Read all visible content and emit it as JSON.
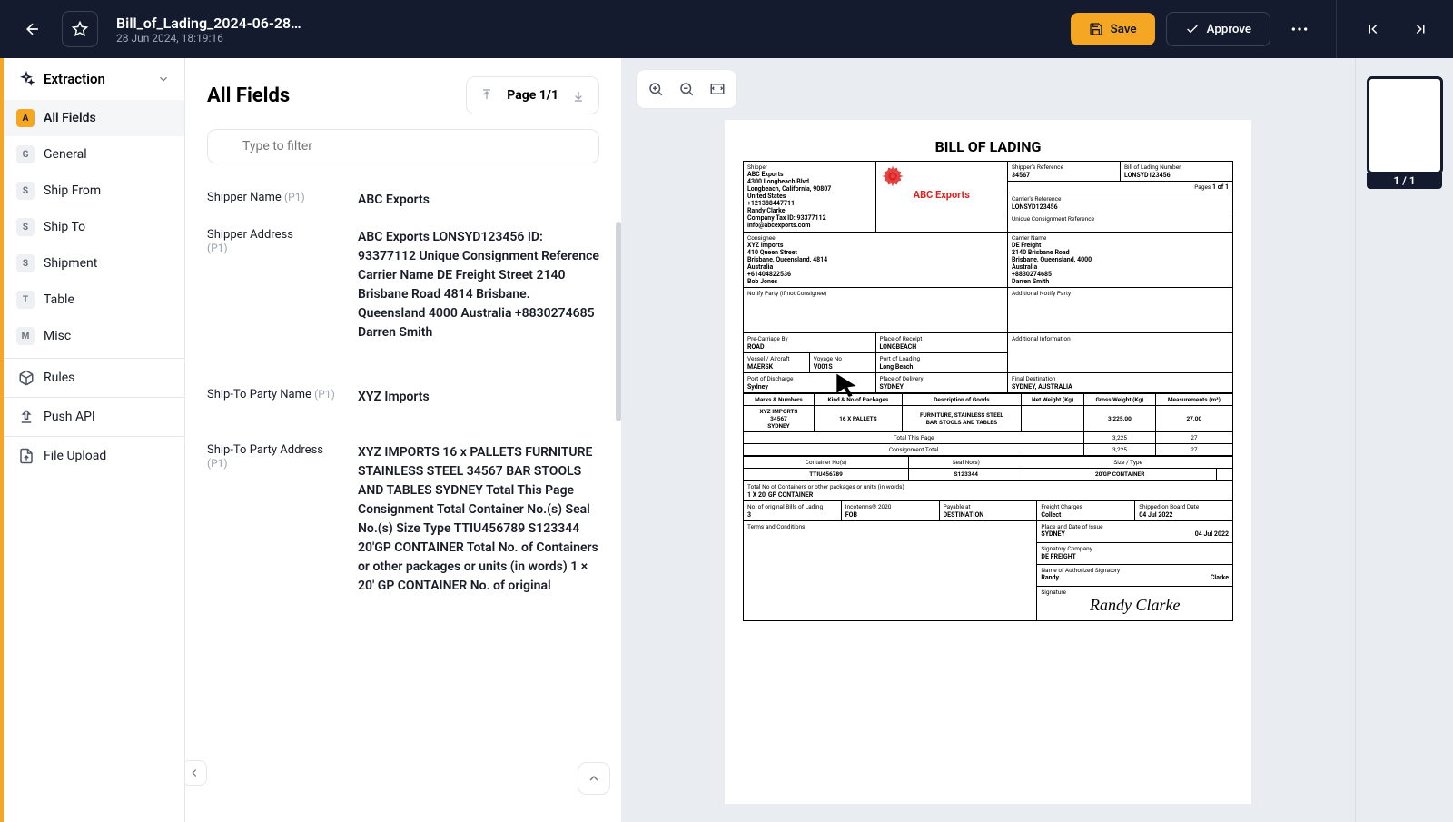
{
  "header": {
    "doc_title": "Bill_of_Lading_2024-06-28…",
    "doc_date": "28 Jun 2024, 18:19:16",
    "save": "Save",
    "approve": "Approve"
  },
  "sidebar": {
    "extraction": "Extraction",
    "items": [
      {
        "badge": "A",
        "label": "All Fields",
        "active": true
      },
      {
        "badge": "G",
        "label": "General"
      },
      {
        "badge": "S",
        "label": "Ship From"
      },
      {
        "badge": "S",
        "label": "Ship To"
      },
      {
        "badge": "S",
        "label": "Shipment"
      },
      {
        "badge": "T",
        "label": "Table"
      },
      {
        "badge": "M",
        "label": "Misc"
      }
    ],
    "rules": "Rules",
    "push_api": "Push API",
    "file_upload": "File Upload"
  },
  "fields_panel": {
    "title": "All Fields",
    "page_nav": "Page 1/1",
    "filter_placeholder": "Type to filter",
    "fields": [
      {
        "label": "Shipper Name",
        "page": "(P1)",
        "value": "ABC Exports"
      },
      {
        "label": "Shipper Address",
        "page": "(P1)",
        "value": "ABC Exports LONSYD123456 ID: 93377112 Unique Consignment Reference Carrier Name DE Freight Street 2140 Brisbane Road 4814 Brisbane. Queensland 4000 Australia +8830274685 Darren Smith"
      },
      {
        "label": "Ship-To Party Name",
        "page": "(P1)",
        "value": "XYZ Imports"
      },
      {
        "label": "Ship-To Party Address",
        "page": "(P1)",
        "value": "XYZ IMPORTS 16 x PALLETS FURNITURE STAINLESS STEEL 34567 BAR STOOLS AND TABLES SYDNEY Total This Page Consignment Total Container No.(s) Seal No.(s) Size Type TTIU456789 S123344 20'GP CONTAINER Total No. of Containers or other packages or units (in words) 1 × 20' GP CONTAINER No. of original"
      }
    ]
  },
  "thumb": {
    "label": "1 / 1"
  },
  "document": {
    "title": "BILL OF LADING",
    "shipper": {
      "title": "Shipper",
      "lines": [
        "ABC Exports",
        "4300 Longbeach Blvd",
        "Longbeach, California, 90807",
        "United States",
        "+121388447711",
        "Randy Clarke",
        "Company Tax ID: 93377112",
        "info@abcexports.com"
      ]
    },
    "pages_label": "Pages",
    "pages_val": "1 of 1",
    "shipper_ref_label": "Shipper's Reference",
    "shipper_ref_val": "34567",
    "bol_number_label": "Bill of Lading Number",
    "bol_number_val": "LONSYD123456",
    "carrier_ref_label": "Carrier's Reference",
    "carrier_ref_val": "LONSYD123456",
    "ucr_label": "Unique Consignment Reference",
    "consignee": {
      "title": "Consignee",
      "lines": [
        "XYZ Imports",
        "410 Queen Street",
        "Brisbane, Queensland, 4814",
        "Australia",
        "+61404822536",
        "Bob Jones"
      ]
    },
    "carrier_name": {
      "title": "Carrier Name",
      "lines": [
        "DE Freight",
        "2140 Brisbane Road",
        "Brisbane, Queensland, 4000",
        "Australia",
        "+8830274685",
        "Darren Smith"
      ]
    },
    "notify_label": "Notify Party (if not Consignee)",
    "add_notify_label": "Additional Notify Party",
    "precarriage_label": "Pre-Carriage By",
    "precarriage_val": "ROAD",
    "receipt_label": "Place of Receipt",
    "receipt_val": "LONGBEACH",
    "add_info_label": "Additional Information",
    "vessel_label": "Vessel / Aircraft",
    "vessel_val": "MAERSK",
    "voyage_label": "Voyage No",
    "voyage_val": "V001S",
    "loading_label": "Port of Loading",
    "loading_val": "Long Beach",
    "discharge_label": "Port of Discharge",
    "discharge_val": "Sydney",
    "delivery_label": "Place of Delivery",
    "delivery_val": "SYDNEY",
    "final_dest_label": "Final Destination",
    "final_dest_val": "SYDNEY, AUSTRALIA",
    "items": {
      "headers": [
        "Marks & Numbers",
        "Kind & No of Packages",
        "Description of Goods",
        "Net Weight (Kg)",
        "Gross Weight (Kg)",
        "Measurements (m³)"
      ],
      "row": [
        "XYZ IMPORTS\n34567\nSYDNEY",
        "16 X PALLETS",
        "FURNITURE, STAINLESS STEEL\nBAR STOOLS AND TABLES",
        "",
        "3,225.00",
        "27.00"
      ],
      "total_page_label": "Total This Page",
      "total_page_gw": "3,225",
      "total_page_m": "27",
      "consign_total_label": "Consignment Total",
      "consign_gw": "3,225",
      "consign_m": "27"
    },
    "container_headers": [
      "Container No(s)",
      "Seal No(s)",
      "Size / Type"
    ],
    "container_row": [
      "TTIU456789",
      "S123344",
      "20'GP CONTAINER",
      ""
    ],
    "total_words_label": "Total No of Containers or other packages or units (in words)",
    "total_words_val": "1 X 20' GP CONTAINER",
    "orig_bills_label": "No. of original Bills of Lading",
    "orig_bills_val": "3",
    "incoterms_label": "Incoterms® 2020",
    "incoterms_val": "FOB",
    "payable_label": "Payable at",
    "payable_val": "DESTINATION",
    "freight_label": "Freight Charges",
    "freight_val": "Collect",
    "shipped_label": "Shipped on Board Date",
    "shipped_val": "04 Jul 2022",
    "terms_label": "Terms and Conditions",
    "place_issue_label": "Place and Date of Issue",
    "place_issue_val": "SYDNEY",
    "place_issue_date": "04 Jul 2022",
    "sig_company_label": "Signatory Company",
    "sig_company_val": "DE FREIGHT",
    "auth_sig_label": "Name of Authorized Signatory",
    "auth_sig_first": "Randy",
    "auth_sig_last": "Clarke",
    "signature_label": "Signature",
    "signature_val": "Randy Clarke",
    "logo_label": "ABC Exports"
  }
}
